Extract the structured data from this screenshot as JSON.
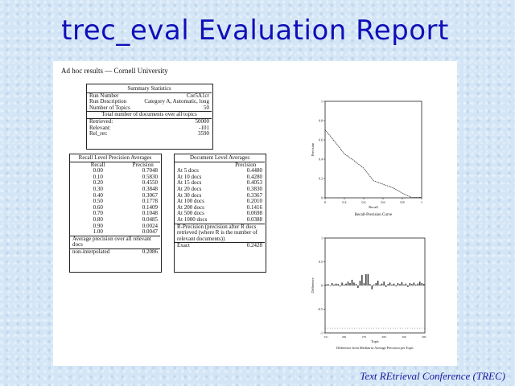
{
  "slide": {
    "title": "trec_eval Evaluation Report",
    "footer": "Text REtrieval Conference (TREC)"
  },
  "report": {
    "heading": "Ad hoc results — Cornell University",
    "summary": {
      "title": "Summary Statistics",
      "rows": [
        {
          "label": "Run Number",
          "value": "Cor5A1cr"
        },
        {
          "label": "Run Description",
          "value": "Category A, Automatic, long"
        },
        {
          "label": "Number of Topics",
          "value": "50"
        }
      ],
      "total_label": "Total number of documents over all topics",
      "totals": [
        {
          "label": "Retrieved:",
          "value": "50000"
        },
        {
          "label": "Relevant:",
          "value": "-101"
        },
        {
          "label": "Rel_ret:",
          "value": "3590"
        }
      ]
    },
    "recall_table": {
      "title": "Recall Level Precision Averages",
      "col_recall": "Recall",
      "col_precision": "Precision",
      "rows": [
        [
          "0.00",
          "0.7048"
        ],
        [
          "0.10",
          "0.5830"
        ],
        [
          "0.20",
          "0.4550"
        ],
        [
          "0.30",
          "0.3848"
        ],
        [
          "0.40",
          "0.3067"
        ],
        [
          "0.50",
          "0.1778"
        ],
        [
          "0.60",
          "0.1409"
        ],
        [
          "0.70",
          "0.1048"
        ],
        [
          "0.80",
          "0.0485"
        ],
        [
          "0.90",
          "0.0024"
        ],
        [
          "1.00",
          "0.0047"
        ]
      ],
      "avg_label": "Average precision over all relevant docs",
      "noninterp_label": "non-interpolated",
      "noninterp_value": "0.2086"
    },
    "doc_table": {
      "title": "Document Level Averages",
      "col_precision": "Precision",
      "rows": [
        [
          "At 5 docs",
          "0.4480"
        ],
        [
          "At 10 docs",
          "0.4280"
        ],
        [
          "At 15 docs",
          "0.4053"
        ],
        [
          "At 20 docs",
          "0.3830"
        ],
        [
          "At 30 docs",
          "0.3367"
        ],
        [
          "At 100 docs",
          "0.2010"
        ],
        [
          "At 200 docs",
          "0.1416"
        ],
        [
          "At 500 docs",
          "0.0698"
        ],
        [
          "At 1000 docs",
          "0.0388"
        ]
      ],
      "rprec_label": "R-Precision (precision after R docs retrieved (where R is the number of relevant documents))",
      "exact_label": "Exact",
      "exact_value": "0.2428"
    },
    "chart_data": [
      {
        "type": "line",
        "title": "Recall-Precision Curve",
        "xlabel": "Recall",
        "ylabel": "Precision",
        "xlim": [
          0,
          1
        ],
        "ylim": [
          0,
          1
        ],
        "x": [
          0.0,
          0.1,
          0.2,
          0.3,
          0.4,
          0.5,
          0.6,
          0.7,
          0.8,
          0.9,
          1.0
        ],
        "series": [
          {
            "values": [
              0.7048,
              0.583,
              0.455,
              0.3848,
              0.3067,
              0.1778,
              0.1409,
              0.1048,
              0.0485,
              0.0024,
              0.0047
            ]
          }
        ]
      },
      {
        "type": "bar",
        "title": "Difference from Median in Average Precision per Topic",
        "xlabel": "Topic",
        "ylabel": "Difference",
        "ylim": [
          -1,
          1
        ],
        "categories": [
          "251",
          "252",
          "253",
          "254",
          "255",
          "256",
          "257",
          "258",
          "259",
          "260",
          "261",
          "262",
          "263",
          "264",
          "265",
          "266",
          "267",
          "268",
          "269",
          "270",
          "271",
          "272",
          "273",
          "274",
          "275",
          "276",
          "277",
          "278",
          "279",
          "280",
          "281",
          "282",
          "283",
          "284",
          "285",
          "286",
          "287",
          "288",
          "289",
          "290",
          "291",
          "292",
          "293",
          "294",
          "295",
          "296",
          "297",
          "298",
          "299",
          "300"
        ],
        "values": [
          0.02,
          0.03,
          -0.01,
          0.05,
          0.02,
          0.04,
          0.03,
          -0.02,
          0.06,
          0.02,
          0.04,
          0.08,
          0.05,
          0.12,
          0.06,
          0.03,
          -0.05,
          0.1,
          0.22,
          0.05,
          0.24,
          0.24,
          0.03,
          -0.08,
          0.02,
          0.05,
          0.1,
          0.02,
          0.04,
          0.08,
          -0.03,
          0.03,
          0.06,
          0.02,
          0.04,
          -0.02,
          0.05,
          0.03,
          0.07,
          0.02,
          0.04,
          -0.03,
          0.05,
          0.03,
          0.06,
          0.02,
          0.04,
          0.08,
          0.05,
          0.03
        ]
      }
    ]
  }
}
